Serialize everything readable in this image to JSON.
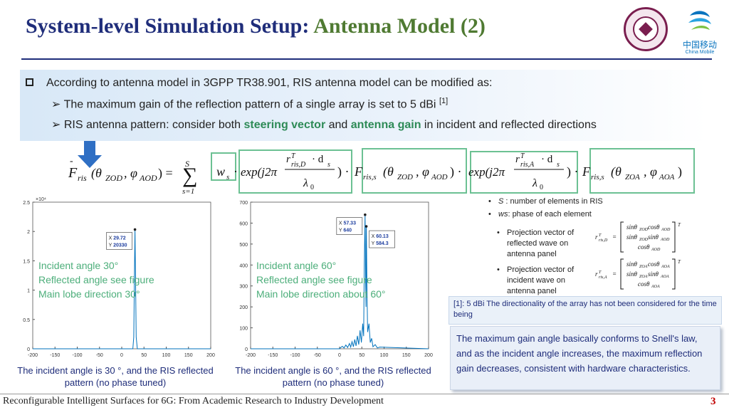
{
  "title": {
    "main": "System-level Simulation Setup: ",
    "accent": "Antenna Model (2)"
  },
  "logos": {
    "seal": "university-seal-logo",
    "cm_cn": "中国移动",
    "cm_en": "China Mobile"
  },
  "banner": {
    "main": "According to antenna model in 3GPP TR38.901, RIS antenna model can be modified as:",
    "sub1_prefix": "The maximum gain of the reflection pattern of a single array is set to 5 dBi ",
    "sub1_ref": "[1]",
    "sub2_prefix": "RIS antenna pattern: consider both ",
    "sub2_hl1": "steering vector",
    "sub2_mid": " and ",
    "sub2_hl2": "antenna gain",
    "sub2_suffix": " in incident and reflected directions"
  },
  "chart_data": [
    {
      "type": "line",
      "title": "",
      "xlabel": "",
      "ylabel": "",
      "y_multiplier": "×10⁴",
      "xlim": [
        -200,
        200
      ],
      "ylim": [
        0,
        25000
      ],
      "x_ticks": [
        -200,
        -150,
        -100,
        -50,
        0,
        50,
        100,
        150,
        200
      ],
      "y_ticks": [
        0,
        5000,
        10000,
        15000,
        20000,
        25000
      ],
      "y_tick_labels": [
        "0",
        "0.5",
        "1",
        "1.5",
        "2",
        "2.5"
      ],
      "series": [
        {
          "points": [
            [
              -200,
              0
            ],
            [
              25,
              0
            ],
            [
              27,
              2000
            ],
            [
              28.5,
              12000
            ],
            [
              29.72,
              20330
            ],
            [
              31,
              12000
            ],
            [
              32.5,
              2000
            ],
            [
              35,
              0
            ],
            [
              200,
              0
            ]
          ]
        }
      ],
      "datatips": [
        {
          "x_label": "X",
          "x": "29.72",
          "y_label": "Y",
          "y": "20330"
        }
      ],
      "overlay": [
        "Incident angle 30°",
        "Reflected angle see figure",
        "Main lobe direction 30°"
      ],
      "caption": "The incident angle is 30 °, and the RIS reflected pattern (no phase tuned)"
    },
    {
      "type": "line",
      "title": "",
      "xlabel": "",
      "ylabel": "",
      "xlim": [
        -200,
        200
      ],
      "ylim": [
        0,
        700
      ],
      "x_ticks": [
        -200,
        -150,
        -100,
        -50,
        0,
        50,
        100,
        150,
        200
      ],
      "y_ticks": [
        0,
        100,
        200,
        300,
        400,
        500,
        600,
        700
      ],
      "series": [
        {
          "points": [
            [
              -200,
              0
            ],
            [
              0,
              0
            ],
            [
              2,
              5
            ],
            [
              6,
              12
            ],
            [
              10,
              4
            ],
            [
              14,
              18
            ],
            [
              18,
              6
            ],
            [
              22,
              25
            ],
            [
              25,
              8
            ],
            [
              28,
              34
            ],
            [
              31,
              10
            ],
            [
              34,
              45
            ],
            [
              37,
              14
            ],
            [
              40,
              62
            ],
            [
              43,
              20
            ],
            [
              46,
              88
            ],
            [
              49,
              30
            ],
            [
              52,
              120
            ],
            [
              54,
              60
            ],
            [
              55.5,
              400
            ],
            [
              57.33,
              640
            ],
            [
              58.5,
              300
            ],
            [
              59.3,
              200
            ],
            [
              60.13,
              584.3
            ],
            [
              61.5,
              300
            ],
            [
              63,
              80
            ],
            [
              66,
              120
            ],
            [
              69,
              30
            ],
            [
              72,
              50
            ],
            [
              75,
              10
            ],
            [
              80,
              20
            ],
            [
              85,
              4
            ],
            [
              90,
              8
            ],
            [
              200,
              0
            ]
          ]
        }
      ],
      "datatips": [
        {
          "x_label": "X",
          "x": "57.33",
          "y_label": "Y",
          "y": "640"
        },
        {
          "x_label": "X",
          "x": "60.13",
          "y_label": "Y",
          "y": "584.3"
        }
      ],
      "overlay": [
        "Incident angle 60°",
        "Reflected angle see figure",
        "Main lobe direction about 60°"
      ],
      "caption": "The incident angle is 60 °, and the RIS reflected pattern (no phase tuned)"
    }
  ],
  "notes": {
    "n1_sym": "S",
    "n1": " : number of elements in RIS",
    "n2_sym": "ws",
    "n2": ": phase of each element",
    "n3": "Projection vector of reflected wave on antenna panel",
    "n4": "Projection vector of incident wave on antenna panel"
  },
  "footnote": "[1]: 5 dBi The directionality of the array has not been considered for the time being",
  "conclusion": "The maximum gain angle basically conforms to Snell's law, and as the incident angle increases, the maximum reflection gain decreases, consistent with hardware characteristics.",
  "footer": "Reconfigurable Intelligent Surfaces for 6G: From Academic Research to Industry Development",
  "page_number": "3",
  "colors": {
    "title": "#1f2d7a",
    "accent": "#4f7a32",
    "box": "#6cc193",
    "curve": "#0072bd",
    "overlay": "#4cae7a"
  }
}
